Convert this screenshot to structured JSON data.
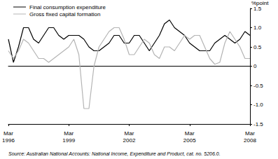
{
  "chart_data": {
    "type": "line",
    "y_label": "%point",
    "caption": "Source: Australian National Accounts: National Income, Expenditure and Product, cat. no. 5206.0.",
    "categories": [
      "Mar 1996",
      null,
      null,
      null,
      null,
      null,
      null,
      null,
      null,
      null,
      null,
      null,
      "Mar 1999",
      null,
      null,
      null,
      null,
      null,
      null,
      null,
      null,
      null,
      null,
      null,
      "Mar 2002",
      null,
      null,
      null,
      null,
      null,
      null,
      null,
      null,
      null,
      null,
      null,
      "Mar 2005",
      null,
      null,
      null,
      null,
      null,
      null,
      null,
      null,
      null,
      null,
      null,
      "Mar 2008"
    ],
    "series": [
      {
        "name": "Final consumption expenditure",
        "color": "#000000",
        "values": [
          0.7,
          0.1,
          0.5,
          1.0,
          1.0,
          0.7,
          0.6,
          0.8,
          1.0,
          1.0,
          0.8,
          0.7,
          0.8,
          0.8,
          0.8,
          0.7,
          0.5,
          0.4,
          0.4,
          0.5,
          0.6,
          0.8,
          0.8,
          0.6,
          0.6,
          0.8,
          0.8,
          0.6,
          0.4,
          0.6,
          0.8,
          1.1,
          1.2,
          1.0,
          0.9,
          0.8,
          0.6,
          0.5,
          0.4,
          0.4,
          0.4,
          0.6,
          0.7,
          0.8,
          0.7,
          0.6,
          0.7,
          0.9,
          0.8
        ]
      },
      {
        "name": "Gross fixed capital formation",
        "color": "#b4b4b4",
        "values": [
          0.4,
          0.2,
          0.4,
          0.7,
          0.6,
          0.4,
          0.2,
          0.2,
          0.1,
          0.2,
          0.3,
          0.4,
          0.5,
          0.7,
          0.3,
          -1.1,
          -1.1,
          0.0,
          0.5,
          0.7,
          0.9,
          1.0,
          1.0,
          0.7,
          0.3,
          0.3,
          0.5,
          0.7,
          0.6,
          0.3,
          0.2,
          0.5,
          0.5,
          0.4,
          0.6,
          0.8,
          0.7,
          0.8,
          0.8,
          0.5,
          0.2,
          0.05,
          0.1,
          0.6,
          0.9,
          0.7,
          0.5,
          0.2,
          0.2
        ]
      }
    ],
    "ylim": [
      -1.5,
      1.5
    ],
    "yticks": [
      {
        "value": -1.5,
        "label": "-1.5"
      },
      {
        "value": -1,
        "label": "-1.0"
      },
      {
        "value": -0.5,
        "label": "-0.5"
      },
      0,
      0.5,
      {
        "value": 1,
        "label": "1.0"
      },
      1.5
    ],
    "grid": false,
    "legend": "top-left"
  }
}
